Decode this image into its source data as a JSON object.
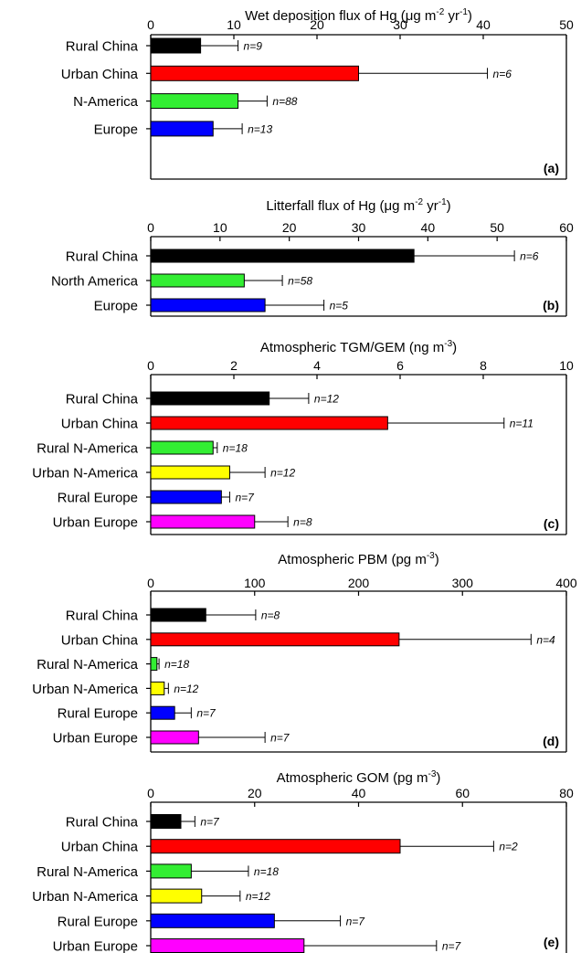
{
  "chart_data": [
    {
      "type": "bar",
      "orientation": "horizontal",
      "panel_label": "(a)",
      "title": "Wet deposition flux of Hg (μg m⁻² yr⁻¹)",
      "title_parts": {
        "main": "Wet deposition flux of Hg (",
        "unit": "μg m",
        "exp1": "-2",
        "mid": " yr",
        "exp2": "-1",
        "end": ")"
      },
      "xlim": [
        0,
        50
      ],
      "ticks": [
        0,
        10,
        20,
        30,
        40,
        50
      ],
      "categories": [
        "Rural China",
        "Urban China",
        "N-America",
        "Europe"
      ],
      "values": [
        6,
        25,
        10.5,
        7.5
      ],
      "errors": [
        10.5,
        40.5,
        14,
        11
      ],
      "n_labels": [
        "n=9",
        "n=6",
        "n=88",
        "n=13"
      ],
      "colors": [
        "#000000",
        "#ff0000",
        "#33ee33",
        "#0000ff"
      ]
    },
    {
      "type": "bar",
      "orientation": "horizontal",
      "panel_label": "(b)",
      "title": "Litterfall flux of Hg (μg m⁻² yr⁻¹)",
      "title_parts": {
        "main": "Litterfall flux of Hg (",
        "unit": "μg m",
        "exp1": "-2",
        "mid": " yr",
        "exp2": "-1",
        "end": ")"
      },
      "xlim": [
        0,
        60
      ],
      "ticks": [
        0,
        10,
        20,
        30,
        40,
        50,
        60
      ],
      "categories": [
        "Rural China",
        "North America",
        "Europe"
      ],
      "values": [
        38,
        13.5,
        16.5
      ],
      "errors": [
        52.5,
        19,
        25
      ],
      "n_labels": [
        "n=6",
        "n=58",
        "n=5"
      ],
      "colors": [
        "#000000",
        "#33ee33",
        "#0000ff"
      ]
    },
    {
      "type": "bar",
      "orientation": "horizontal",
      "panel_label": "(c)",
      "title": "Atmospheric TGM/GEM (ng m⁻³)",
      "title_parts": {
        "main": "Atmospheric TGM/GEM (",
        "unit": "ng m",
        "exp1": "-3",
        "end": ")"
      },
      "xlim": [
        0,
        10
      ],
      "ticks": [
        0,
        2,
        4,
        6,
        8,
        10
      ],
      "categories": [
        "Rural China",
        "Urban China",
        "Rural N-America",
        "Urban N-America",
        "Rural Europe",
        "Urban Europe"
      ],
      "values": [
        2.85,
        5.7,
        1.5,
        1.9,
        1.7,
        2.5
      ],
      "errors": [
        3.8,
        8.5,
        1.6,
        2.75,
        1.9,
        3.3
      ],
      "n_labels": [
        "n=12",
        "n=11",
        "n=18",
        "n=12",
        "n=7",
        "n=8"
      ],
      "colors": [
        "#000000",
        "#ff0000",
        "#33ee33",
        "#ffff00",
        "#0000ff",
        "#ff00ff"
      ]
    },
    {
      "type": "bar",
      "orientation": "horizontal",
      "panel_label": "(d)",
      "title": "Atmospheric PBM (pg m⁻³)",
      "title_parts": {
        "main": "Atmospheric PBM (",
        "unit": "pg m",
        "exp1": "-3",
        "end": ")"
      },
      "xlim": [
        0,
        400
      ],
      "ticks": [
        0,
        100,
        200,
        300,
        400
      ],
      "categories": [
        "Rural China",
        "Urban China",
        "Rural N-America",
        "Urban N-America",
        "Rural Europe",
        "Urban Europe"
      ],
      "values": [
        53,
        239,
        6,
        13,
        23,
        46
      ],
      "errors": [
        101,
        366,
        8,
        17,
        39,
        110
      ],
      "n_labels": [
        "n=8",
        "n=4",
        "n=18",
        "n=12",
        "n=7",
        "n=7"
      ],
      "colors": [
        "#000000",
        "#ff0000",
        "#33ee33",
        "#ffff00",
        "#0000ff",
        "#ff00ff"
      ]
    },
    {
      "type": "bar",
      "orientation": "horizontal",
      "panel_label": "(e)",
      "title": "Atmospheric GOM (pg m⁻³)",
      "title_parts": {
        "main": "Atmospheric GOM (",
        "unit": "pg m",
        "exp1": "-3",
        "end": ")"
      },
      "xlim": [
        0,
        80
      ],
      "ticks": [
        0,
        20,
        40,
        60,
        80
      ],
      "categories": [
        "Rural China",
        "Urban China",
        "Rural N-America",
        "Urban N-America",
        "Rural Europe",
        "Urban Europe"
      ],
      "values": [
        5.8,
        48,
        7.8,
        9.8,
        23.8,
        29.5
      ],
      "errors": [
        8.5,
        66,
        18.8,
        17.2,
        36.5,
        55
      ],
      "n_labels": [
        "n=7",
        "n=2",
        "n=18",
        "n=12",
        "n=7",
        "n=7"
      ],
      "colors": [
        "#000000",
        "#ff0000",
        "#33ee33",
        "#ffff00",
        "#0000ff",
        "#ff00ff"
      ]
    }
  ]
}
